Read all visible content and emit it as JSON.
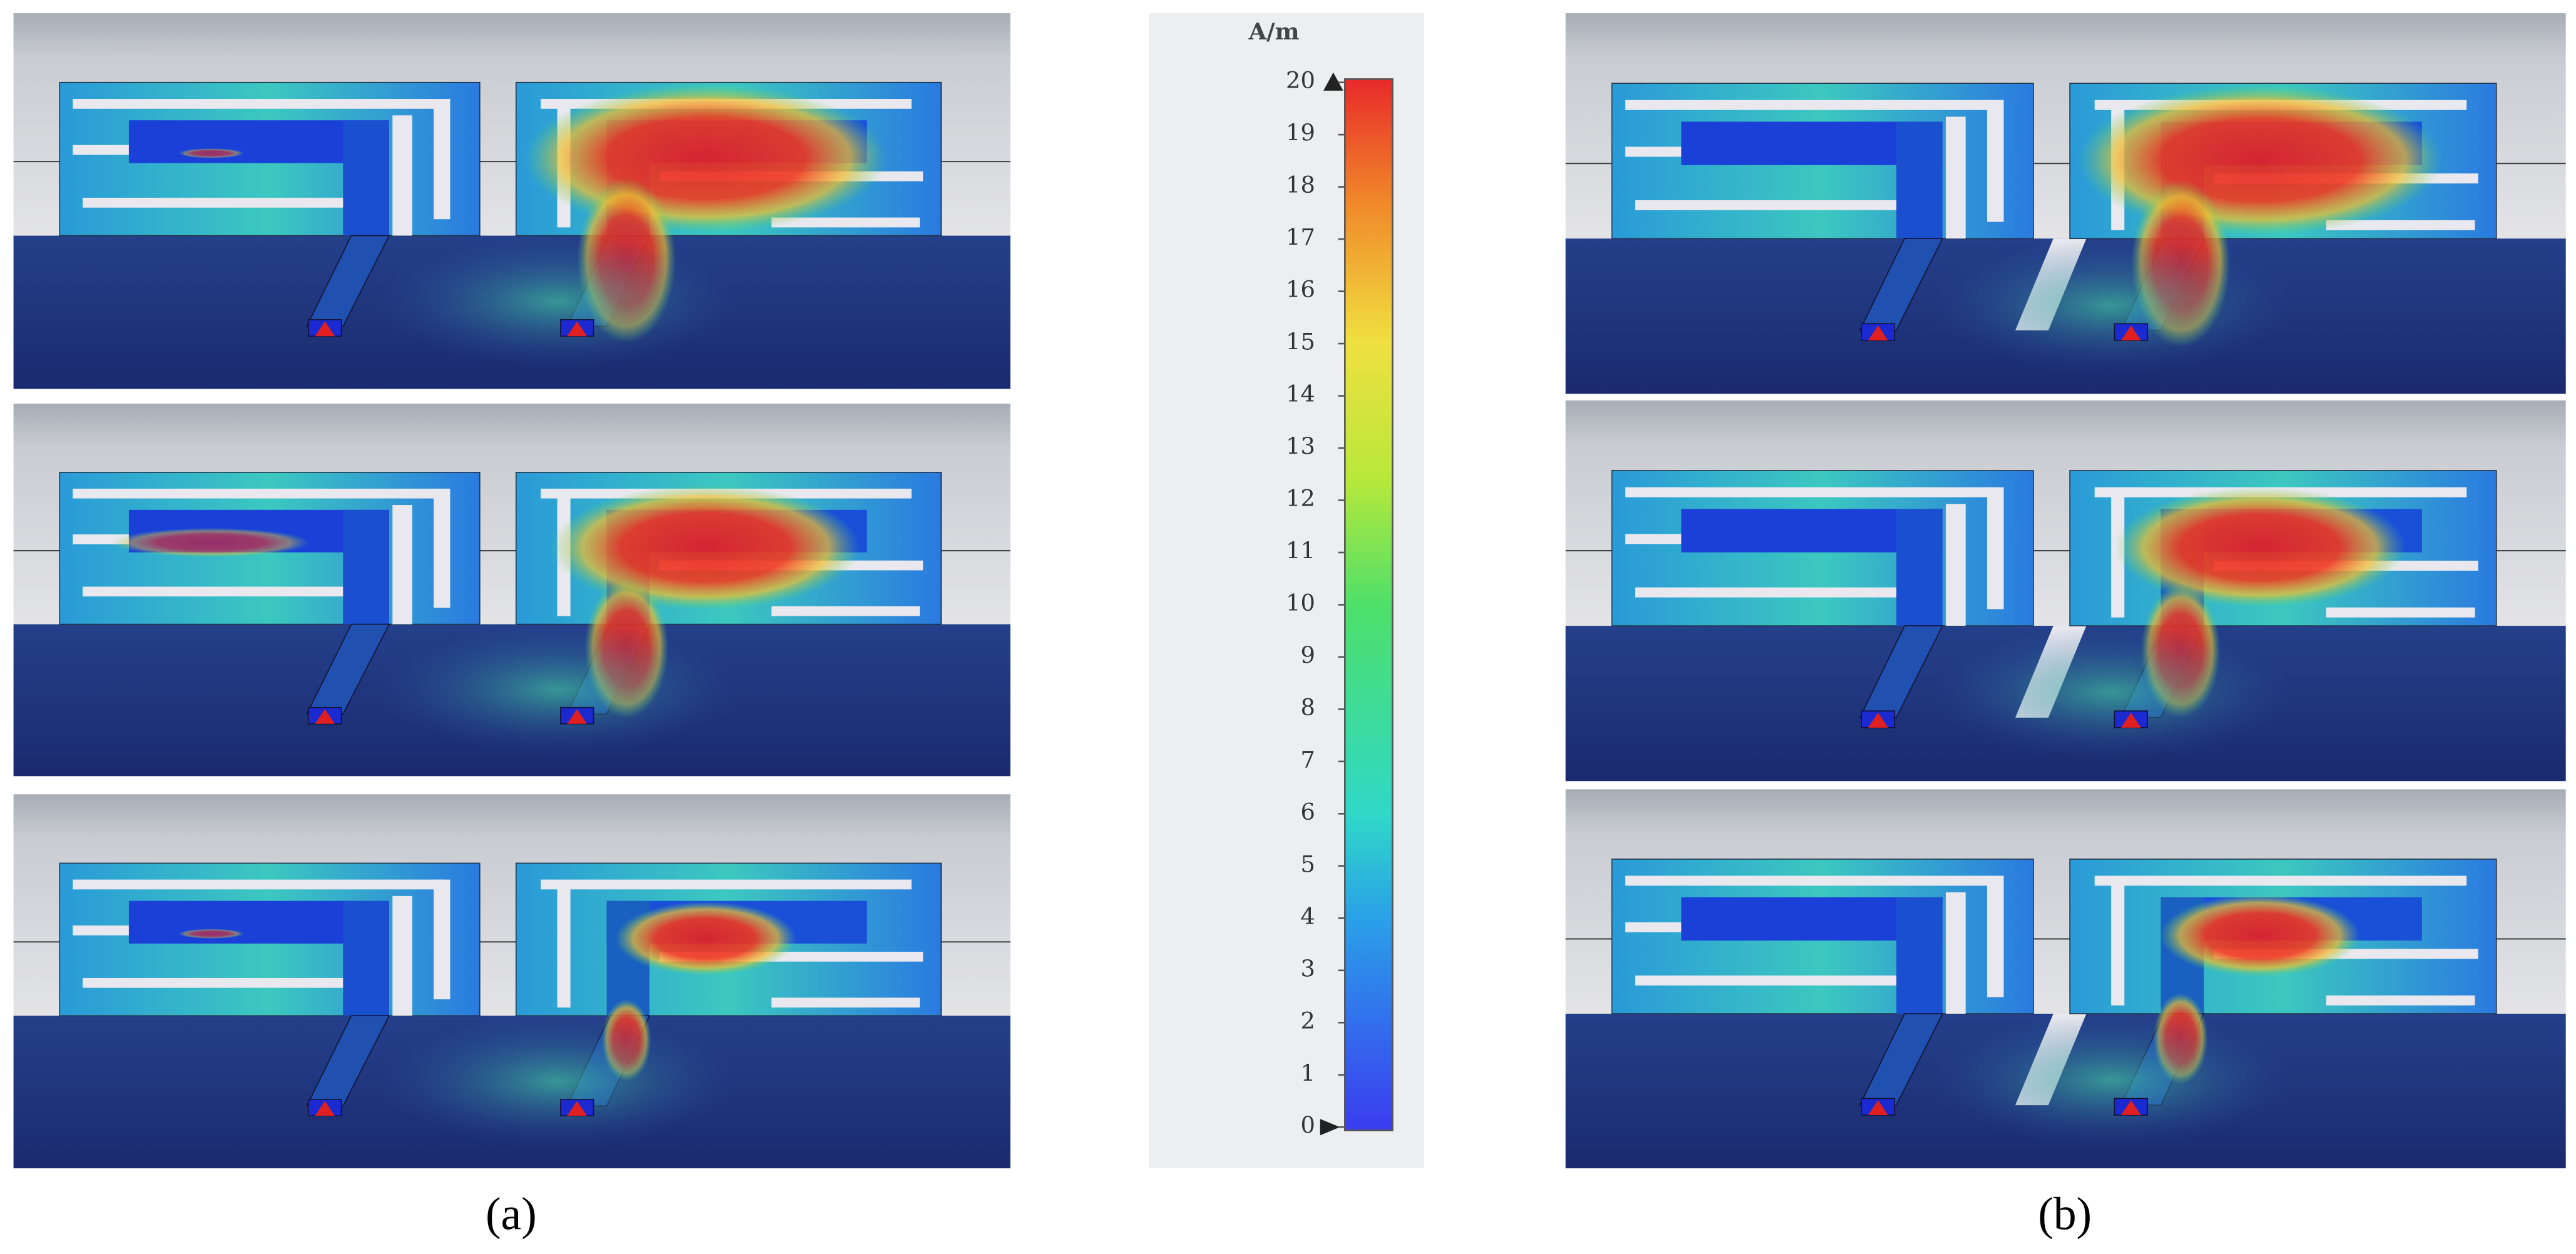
{
  "colorbar": {
    "unit": "A/m",
    "range": [
      0,
      20
    ],
    "ticks": [
      0,
      1,
      2,
      3,
      4,
      5,
      6,
      7,
      8,
      9,
      10,
      11,
      12,
      13,
      14,
      15,
      16,
      17,
      18,
      19,
      20
    ]
  },
  "panels": [
    {
      "label": "(a)"
    },
    {
      "label": "(b)"
    }
  ]
}
